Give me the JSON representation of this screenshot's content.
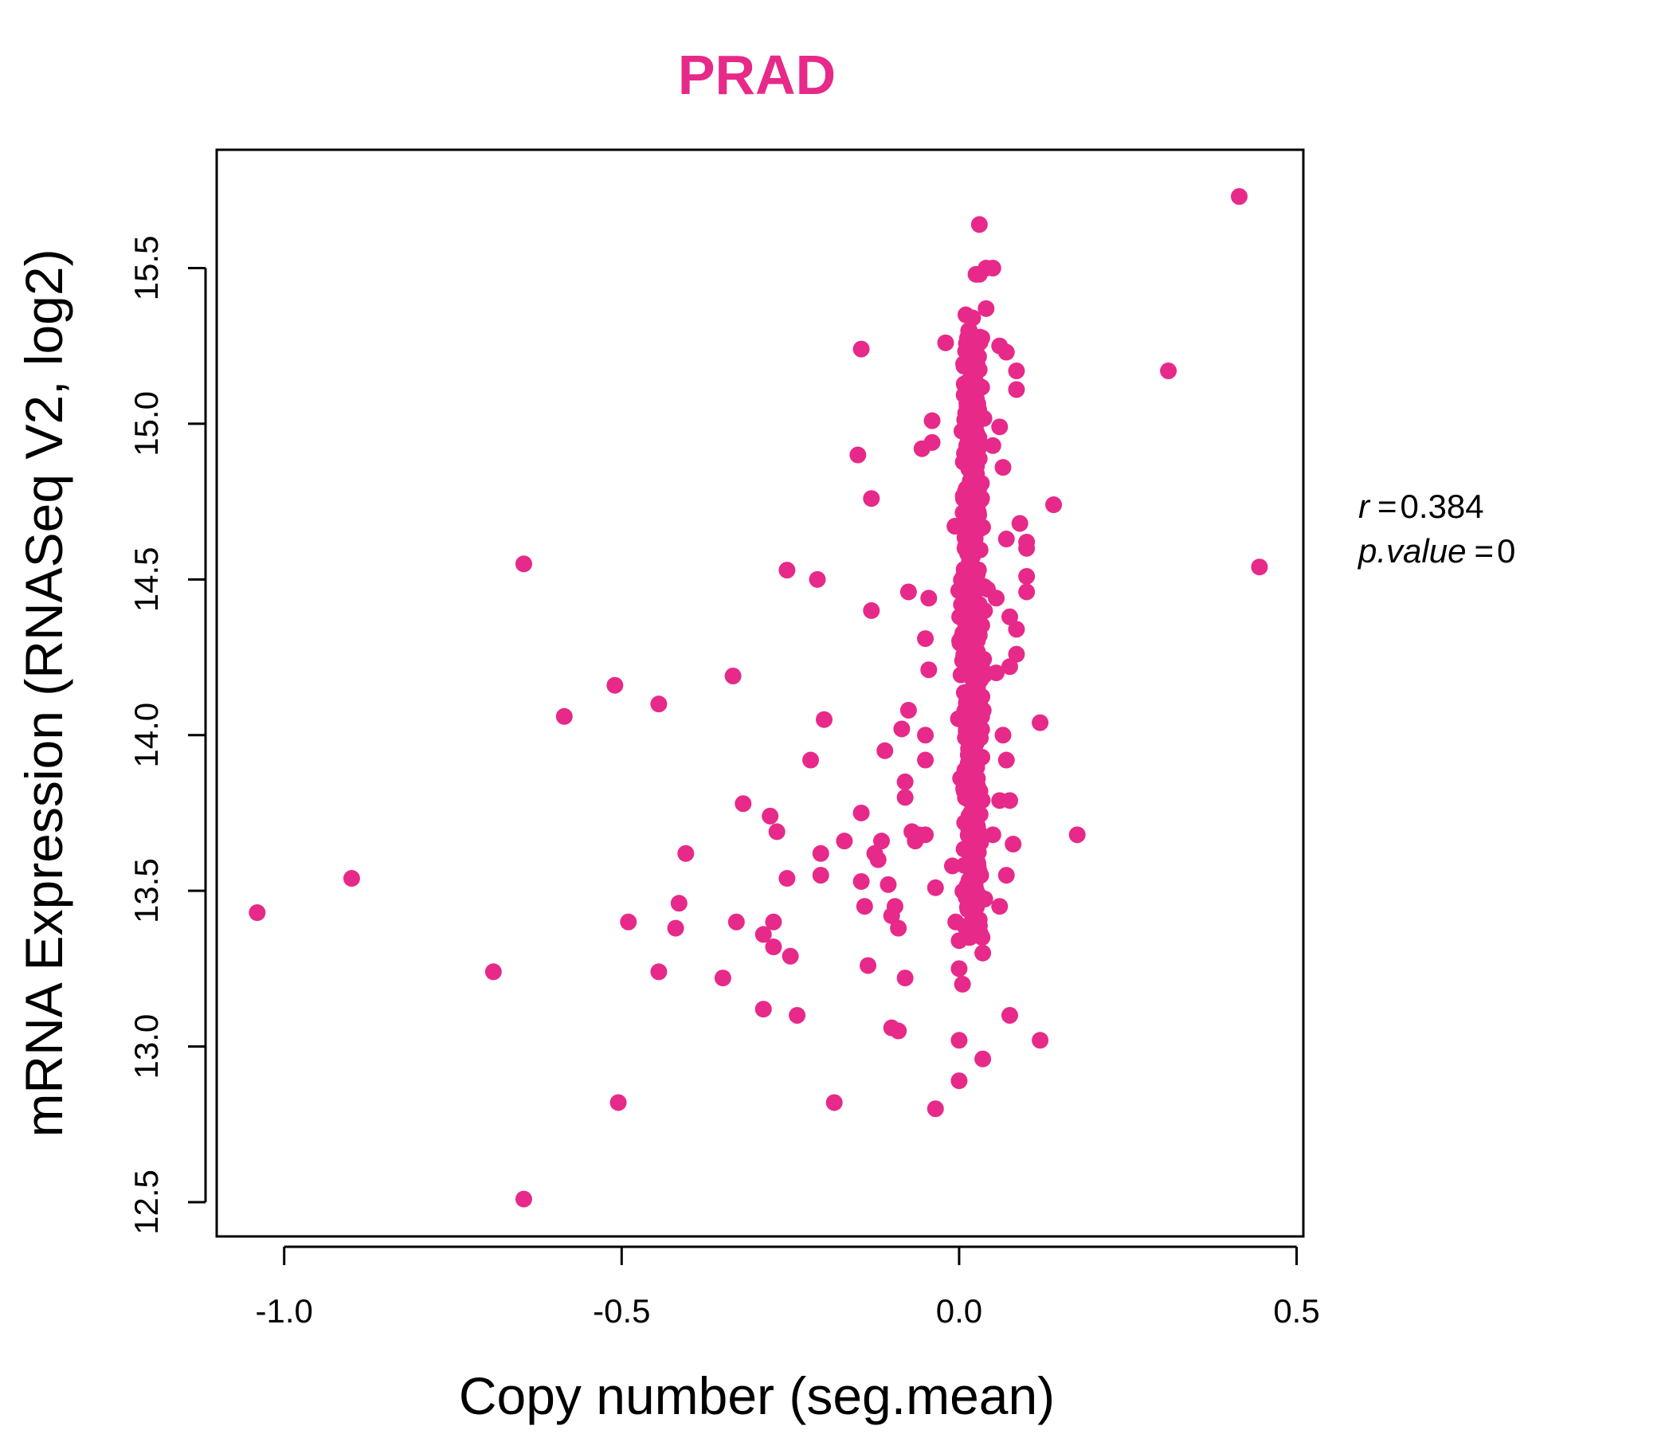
{
  "colors": {
    "accent": "#e7298a",
    "axis": "#000000"
  },
  "chart_data": {
    "type": "scatter",
    "title": "PRAD",
    "xlabel": "Copy number (seg.mean)",
    "ylabel": "mRNA Expression (RNASeq V2, log2)",
    "xlim": [
      -1.1,
      0.51
    ],
    "ylim": [
      12.39,
      15.88
    ],
    "x_ticks": [
      -1.0,
      -0.5,
      0.0,
      0.5
    ],
    "x_tick_labels": [
      "-1.0",
      "-0.5",
      "0.0",
      "0.5"
    ],
    "y_ticks": [
      12.5,
      13.0,
      13.5,
      14.0,
      14.5,
      15.0,
      15.5
    ],
    "y_tick_labels": [
      "12.5",
      "13.0",
      "13.5",
      "14.0",
      "14.5",
      "15.0",
      "15.5"
    ],
    "grid": false,
    "annotation": {
      "r_symbol": "r",
      "r_value": "0.384",
      "p_symbol": "p.value",
      "p_value": "0"
    },
    "points": [
      [
        0.415,
        15.73
      ],
      [
        0.445,
        14.54
      ],
      [
        0.31,
        15.17
      ],
      [
        0.175,
        13.68
      ],
      [
        0.14,
        14.74
      ],
      [
        0.12,
        14.04
      ],
      [
        0.12,
        13.02
      ],
      [
        0.1,
        14.46
      ],
      [
        0.1,
        14.51
      ],
      [
        0.1,
        14.6
      ],
      [
        0.1,
        14.62
      ],
      [
        0.09,
        14.68
      ],
      [
        0.085,
        14.34
      ],
      [
        0.085,
        14.26
      ],
      [
        0.085,
        15.11
      ],
      [
        0.085,
        15.17
      ],
      [
        0.08,
        13.65
      ],
      [
        0.075,
        13.79
      ],
      [
        0.075,
        13.1
      ],
      [
        0.075,
        14.38
      ],
      [
        0.075,
        14.22
      ],
      [
        0.07,
        14.63
      ],
      [
        0.07,
        13.55
      ],
      [
        0.07,
        13.92
      ],
      [
        0.07,
        15.23
      ],
      [
        0.065,
        14.86
      ],
      [
        0.065,
        14.0
      ],
      [
        0.06,
        13.79
      ],
      [
        0.06,
        13.45
      ],
      [
        0.06,
        15.25
      ],
      [
        0.06,
        14.99
      ],
      [
        0.055,
        14.44
      ],
      [
        0.055,
        14.2
      ],
      [
        0.05,
        13.68
      ],
      [
        0.05,
        14.93
      ],
      [
        0.05,
        15.5
      ],
      [
        0.04,
        15.5
      ],
      [
        0.04,
        15.37
      ],
      [
        0.035,
        13.3
      ],
      [
        0.035,
        12.96
      ],
      [
        0.03,
        13.56
      ],
      [
        0.03,
        15.64
      ],
      [
        0.03,
        15.48
      ],
      [
        0.025,
        15.48
      ],
      [
        0.025,
        13.45
      ],
      [
        0.02,
        15.34
      ],
      [
        0.015,
        15.3
      ],
      [
        0.01,
        15.35
      ],
      [
        0.005,
        13.2
      ],
      [
        0.0,
        12.89
      ],
      [
        0.0,
        13.02
      ],
      [
        0.0,
        13.25
      ],
      [
        0.0,
        13.34
      ],
      [
        -0.005,
        13.4
      ],
      [
        -0.01,
        13.58
      ],
      [
        -0.02,
        15.26
      ],
      [
        -0.035,
        12.8
      ],
      [
        -0.035,
        13.51
      ],
      [
        -0.04,
        15.01
      ],
      [
        -0.04,
        14.94
      ],
      [
        -0.045,
        14.44
      ],
      [
        -0.045,
        14.21
      ],
      [
        -0.05,
        14.0
      ],
      [
        -0.05,
        13.92
      ],
      [
        -0.05,
        14.31
      ],
      [
        -0.05,
        13.68
      ],
      [
        -0.055,
        14.92
      ],
      [
        -0.06,
        13.68
      ],
      [
        -0.065,
        13.66
      ],
      [
        -0.07,
        13.69
      ],
      [
        -0.075,
        14.46
      ],
      [
        -0.075,
        14.08
      ],
      [
        -0.08,
        13.85
      ],
      [
        -0.08,
        13.8
      ],
      [
        -0.08,
        13.22
      ],
      [
        -0.085,
        14.02
      ],
      [
        -0.09,
        13.38
      ],
      [
        -0.09,
        13.05
      ],
      [
        -0.095,
        13.45
      ],
      [
        -0.1,
        13.42
      ],
      [
        -0.1,
        13.06
      ],
      [
        -0.105,
        13.52
      ],
      [
        -0.11,
        13.95
      ],
      [
        -0.115,
        13.66
      ],
      [
        -0.12,
        13.6
      ],
      [
        -0.125,
        13.62
      ],
      [
        -0.13,
        14.76
      ],
      [
        -0.13,
        14.4
      ],
      [
        -0.135,
        13.26
      ],
      [
        -0.14,
        13.45
      ],
      [
        -0.145,
        13.75
      ],
      [
        -0.145,
        13.53
      ],
      [
        -0.145,
        15.24
      ],
      [
        -0.15,
        14.9
      ],
      [
        -0.17,
        13.66
      ],
      [
        -0.185,
        12.82
      ],
      [
        -0.2,
        14.05
      ],
      [
        -0.205,
        13.55
      ],
      [
        -0.205,
        13.62
      ],
      [
        -0.21,
        14.5
      ],
      [
        -0.22,
        13.92
      ],
      [
        -0.24,
        13.1
      ],
      [
        -0.25,
        13.29
      ],
      [
        -0.255,
        13.54
      ],
      [
        -0.255,
        14.53
      ],
      [
        -0.27,
        13.69
      ],
      [
        -0.275,
        13.4
      ],
      [
        -0.275,
        13.32
      ],
      [
        -0.28,
        13.74
      ],
      [
        -0.29,
        13.36
      ],
      [
        -0.29,
        13.12
      ],
      [
        -0.32,
        13.78
      ],
      [
        -0.33,
        13.4
      ],
      [
        -0.335,
        14.19
      ],
      [
        -0.35,
        13.22
      ],
      [
        -0.405,
        13.62
      ],
      [
        -0.415,
        13.46
      ],
      [
        -0.42,
        13.38
      ],
      [
        -0.445,
        13.24
      ],
      [
        -0.445,
        14.1
      ],
      [
        -0.49,
        13.4
      ],
      [
        -0.505,
        12.82
      ],
      [
        -0.51,
        14.16
      ],
      [
        -0.585,
        14.06
      ],
      [
        -0.645,
        14.55
      ],
      [
        -0.645,
        12.51
      ],
      [
        -0.69,
        13.24
      ],
      [
        -0.9,
        13.54
      ],
      [
        -1.04,
        13.43
      ]
    ],
    "cluster": {
      "x_center": 0.02,
      "x_spread": 0.025,
      "y_min": 13.35,
      "y_max": 15.3,
      "count": 480,
      "seed": 7
    }
  }
}
